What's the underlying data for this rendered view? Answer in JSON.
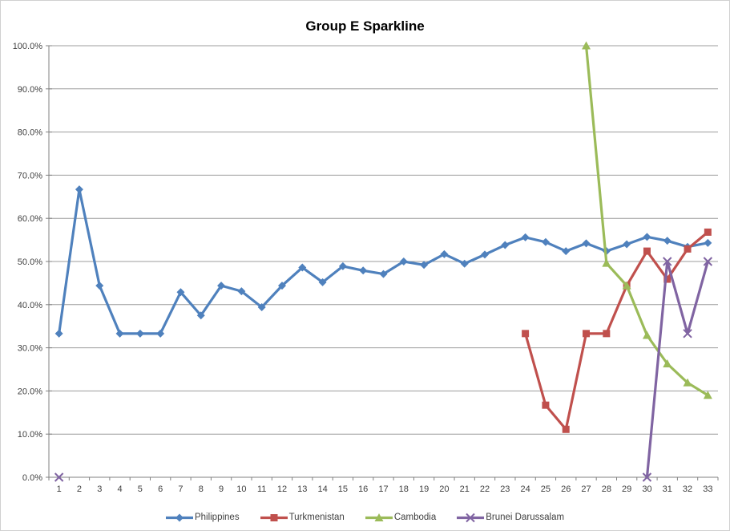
{
  "chart_data": {
    "type": "line",
    "title": "Group E Sparkline",
    "x": [
      1,
      2,
      3,
      4,
      5,
      6,
      7,
      8,
      9,
      10,
      11,
      12,
      13,
      14,
      15,
      16,
      17,
      18,
      19,
      20,
      21,
      22,
      23,
      24,
      25,
      26,
      27,
      28,
      29,
      30,
      31,
      32,
      33
    ],
    "xlabel": "",
    "ylabel": "",
    "ylim": [
      0,
      100
    ],
    "y_tick_step": 10,
    "y_tick_labels": [
      "0.0%",
      "10.0%",
      "20.0%",
      "30.0%",
      "40.0%",
      "50.0%",
      "60.0%",
      "70.0%",
      "80.0%",
      "90.0%",
      "100.0%"
    ],
    "grid": true,
    "legend_position": "bottom",
    "series": [
      {
        "name": "Philippines",
        "color": "#4F81BD",
        "marker": "diamond",
        "values": [
          33.3,
          66.7,
          44.4,
          33.3,
          33.3,
          33.3,
          42.9,
          37.5,
          44.4,
          43.1,
          39.4,
          44.4,
          48.6,
          45.2,
          48.9,
          47.9,
          47.1,
          50.0,
          49.2,
          51.7,
          49.5,
          51.6,
          53.8,
          55.6,
          54.5,
          52.4,
          54.2,
          52.4,
          54.0,
          55.7,
          54.8,
          53.4,
          54.3
        ]
      },
      {
        "name": "Turkmenistan",
        "color": "#C0504D",
        "marker": "square",
        "values": [
          null,
          null,
          null,
          null,
          null,
          null,
          null,
          null,
          null,
          null,
          null,
          null,
          null,
          null,
          null,
          null,
          null,
          null,
          null,
          null,
          null,
          null,
          null,
          33.3,
          16.7,
          11.1,
          33.3,
          33.3,
          44.4,
          52.4,
          45.9,
          52.9,
          56.8
        ]
      },
      {
        "name": "Cambodia",
        "color": "#9BBB59",
        "marker": "triangle",
        "values": [
          null,
          null,
          null,
          null,
          null,
          null,
          null,
          null,
          null,
          null,
          null,
          null,
          null,
          null,
          null,
          null,
          null,
          null,
          null,
          null,
          null,
          null,
          null,
          null,
          null,
          null,
          100.0,
          49.6,
          44.4,
          32.9,
          26.3,
          21.9,
          19.0
        ]
      },
      {
        "name": "Brunei Darussalam",
        "color": "#8064A2",
        "marker": "x",
        "values": [
          0.0,
          null,
          null,
          null,
          null,
          null,
          null,
          null,
          null,
          null,
          null,
          null,
          null,
          null,
          null,
          null,
          null,
          null,
          null,
          null,
          null,
          null,
          null,
          null,
          null,
          null,
          null,
          null,
          null,
          0.0,
          50.0,
          33.3,
          50.0
        ]
      }
    ],
    "colors": {
      "gridline": "#9C9C9C",
      "axis": "#808080",
      "tick_label": "#404040",
      "title": "#000000",
      "background": "#FFFFFF"
    }
  }
}
